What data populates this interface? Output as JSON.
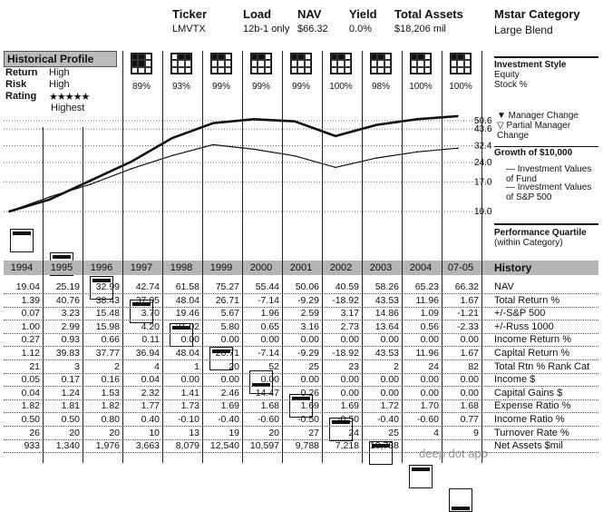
{
  "header": {
    "ticker_label": "Ticker",
    "ticker": "LMVTX",
    "load_label": "Load",
    "load": "12b-1 only",
    "nav_label": "NAV",
    "nav": "$66.32",
    "yield_label": "Yield",
    "yield": "0.0%",
    "assets_label": "Total Assets",
    "assets": "$18,206 mil",
    "category_label": "Mstar Category",
    "category": "Large Blend"
  },
  "historical_profile": {
    "title": "Historical Profile",
    "return_label": "Return",
    "return": "High",
    "risk_label": "Risk",
    "risk": "High",
    "rating_label": "Rating",
    "rating_stars": "★★★★★",
    "rating_text": "Highest"
  },
  "investment_style": {
    "title": "Investment Style",
    "sub1": "Equity",
    "sub2": "Stock %",
    "percentages": [
      "89%",
      "93%",
      "99%",
      "99%",
      "99%",
      "100%",
      "98%",
      "100%",
      "100%"
    ]
  },
  "legend": {
    "manager_change": "▼ Manager Change",
    "partial_change": "▽ Partial Manager Change",
    "growth": "Growth of $10,000",
    "fund_line": "— Investment Values of Fund",
    "sp_line": "— Investment Values of S&P 500"
  },
  "chart_data": {
    "type": "line",
    "title": "Growth of $10,000",
    "y_ticks": [
      "50.6",
      "43.6",
      "32.4",
      "24.0",
      "17.0",
      "10.0"
    ],
    "x": [
      1994,
      1995,
      1996,
      1997,
      1998,
      1999,
      2000,
      2001,
      2002,
      2003,
      2004,
      2005
    ],
    "series": [
      {
        "name": "Investment Values of Fund",
        "values": [
          10.0,
          12.4,
          17.4,
          24.4,
          37.2,
          48.5,
          52.0,
          50.0,
          38.5,
          47.0,
          52.0,
          55.0
        ]
      },
      {
        "name": "Investment Values of S&P 500",
        "values": [
          10.0,
          13.0,
          16.3,
          21.5,
          27.2,
          33.0,
          30.4,
          27.0,
          22.0,
          26.0,
          29.0,
          31.0
        ]
      }
    ]
  },
  "performance_quartile": {
    "title": "Performance Quartile",
    "subtitle": "(within Category)",
    "quartiles": [
      1,
      1,
      1,
      1,
      1,
      1,
      3,
      1,
      1,
      1,
      1,
      4
    ]
  },
  "history": {
    "title": "History",
    "years": [
      "1994",
      "1995",
      "1996",
      "1997",
      "1998",
      "1999",
      "2000",
      "2001",
      "2002",
      "2003",
      "2004",
      "07-05"
    ],
    "rows": [
      {
        "label": "NAV",
        "values": [
          "19.04",
          "25.19",
          "32.99",
          "42.74",
          "61.58",
          "75.27",
          "55.44",
          "50.06",
          "40.59",
          "58.26",
          "65.23",
          "66.32"
        ]
      },
      {
        "label": "Total Return %",
        "values": [
          "1.39",
          "40.76",
          "38.43",
          "37.05",
          "48.04",
          "26.71",
          "-7.14",
          "-9.29",
          "-18.92",
          "43.53",
          "11.96",
          "1.67"
        ]
      },
      {
        "label": "+/-S&P 500",
        "values": [
          "0.07",
          "3.23",
          "15.48",
          "3.70",
          "19.46",
          "5.67",
          "1.96",
          "2.59",
          "3.17",
          "14.86",
          "1.09",
          "-1.21"
        ]
      },
      {
        "label": "+/-Russ 1000",
        "values": [
          "1.00",
          "2.99",
          "15.98",
          "4.20",
          "21.02",
          "5.80",
          "0.65",
          "3.16",
          "2.73",
          "13.64",
          "0.56",
          "-2.33"
        ]
      },
      {
        "label": "Income Return %",
        "values": [
          "0.27",
          "0.93",
          "0.66",
          "0.11",
          "0.00",
          "0.00",
          "0.00",
          "0.00",
          "0.00",
          "0.00",
          "0.00",
          "0.00"
        ]
      },
      {
        "label": "Capital Return %",
        "values": [
          "1.12",
          "39.83",
          "37.77",
          "36.94",
          "48.04",
          "26.71",
          "-7.14",
          "-9.29",
          "-18.92",
          "43.53",
          "11.96",
          "1.67"
        ]
      },
      {
        "label": "Total Rtn % Rank Cat",
        "values": [
          "21",
          "3",
          "2",
          "4",
          "1",
          "20",
          "52",
          "25",
          "23",
          "2",
          "24",
          "82"
        ]
      },
      {
        "label": "Income $",
        "values": [
          "0.05",
          "0.17",
          "0.16",
          "0.04",
          "0.00",
          "0.00",
          "0.00",
          "0.00",
          "0.00",
          "0.00",
          "0.00",
          "0.00"
        ]
      },
      {
        "label": "Capital Gains $",
        "values": [
          "0.04",
          "1.24",
          "1.53",
          "2.32",
          "1.41",
          "2.46",
          "14.47",
          "0.26",
          "0.00",
          "0.00",
          "0.00",
          "0.00"
        ]
      },
      {
        "label": "Expense Ratio %",
        "values": [
          "1.82",
          "1.81",
          "1.82",
          "1.77",
          "1.73",
          "1.69",
          "1.68",
          "1.69",
          "1.69",
          "1.72",
          "1.70",
          "1.68"
        ]
      },
      {
        "label": "Income Ratio %",
        "values": [
          "0.50",
          "0.50",
          "0.80",
          "0.40",
          "-0.10",
          "-0.40",
          "-0.60",
          "-0.50",
          "-0.50",
          "-0.40",
          "-0.60",
          "0.77"
        ]
      },
      {
        "label": "Turnover Rate %",
        "values": [
          "26",
          "20",
          "20",
          "10",
          "13",
          "19",
          "20",
          "27",
          "24",
          "25",
          "4",
          "9"
        ]
      },
      {
        "label": "Net Assets $mil",
        "values": [
          "933",
          "1,340",
          "1,976",
          "3,663",
          "8,079",
          "12,540",
          "10,597",
          "9,788",
          "7,218",
          "10,738",
          "",
          ""
        ]
      }
    ]
  },
  "watermark": "deep dot app"
}
